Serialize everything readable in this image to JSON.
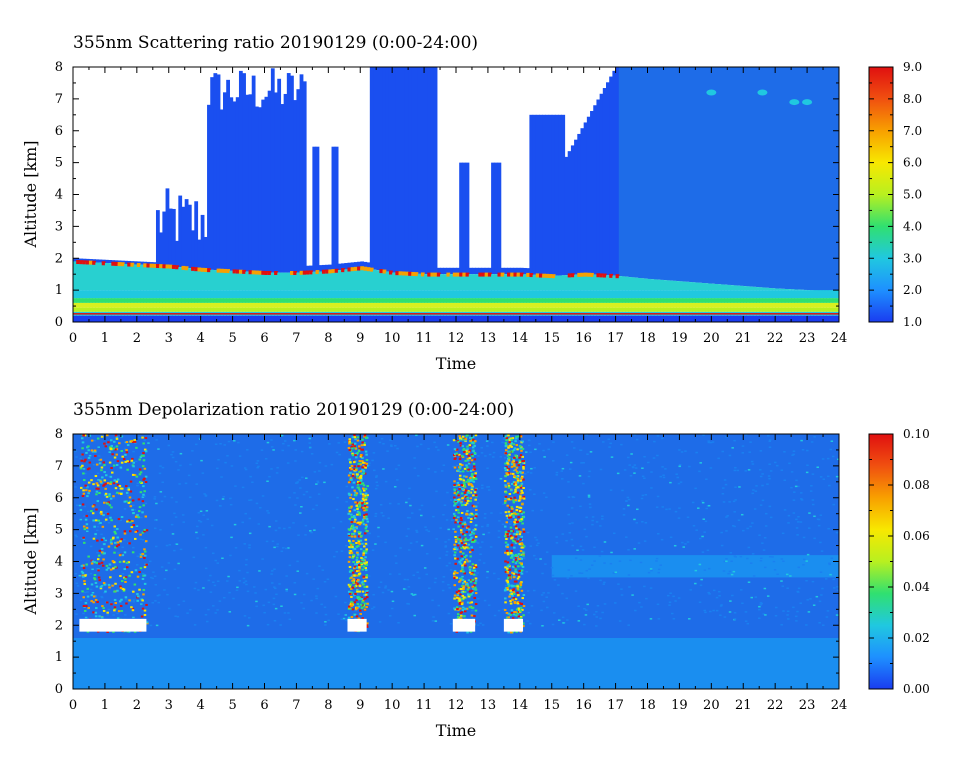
{
  "chart_data": [
    {
      "type": "heatmap",
      "title": "355nm Scattering ratio  20190129 (0:00-24:00)",
      "xlabel": "Time",
      "ylabel": "Altitude [km]",
      "xlim": [
        0,
        24
      ],
      "ylim": [
        0,
        8
      ],
      "x_ticks": [
        "0",
        "1",
        "2",
        "3",
        "4",
        "5",
        "6",
        "7",
        "8",
        "9",
        "10",
        "11",
        "12",
        "13",
        "14",
        "15",
        "16",
        "17",
        "18",
        "19",
        "20",
        "21",
        "22",
        "23",
        "24"
      ],
      "y_ticks": [
        "0",
        "1",
        "2",
        "3",
        "4",
        "5",
        "6",
        "7",
        "8"
      ],
      "colorbar": {
        "min": 1.0,
        "max": 9.0,
        "ticks": [
          "1.0",
          "2.0",
          "3.0",
          "4.0",
          "5.0",
          "6.0",
          "7.0",
          "8.0",
          "9.0"
        ],
        "colors": [
          "#1a3cf0",
          "#1e90ff",
          "#20c8e0",
          "#30e070",
          "#b8f020",
          "#f8e800",
          "#f8a000",
          "#f05010",
          "#e01010"
        ]
      },
      "features": {
        "no_data_color": "#ffffff",
        "description_cloud_top_km": [
          [
            0,
            1.9
          ],
          [
            2,
            1.8
          ],
          [
            3,
            1.75
          ],
          [
            4,
            1.65
          ],
          [
            5,
            1.6
          ],
          [
            6,
            1.55
          ],
          [
            7,
            1.55
          ],
          [
            8,
            1.6
          ],
          [
            9,
            1.7
          ],
          [
            10,
            1.55
          ],
          [
            11,
            1.5
          ],
          [
            12,
            1.5
          ],
          [
            13,
            1.5
          ],
          [
            14,
            1.5
          ],
          [
            15,
            1.45
          ],
          [
            16,
            1.5
          ],
          [
            17,
            1.45
          ],
          [
            18,
            1.35
          ],
          [
            20,
            1.2
          ],
          [
            22,
            1.05
          ],
          [
            24,
            0.95
          ]
        ],
        "surface_layer_km": [
          0.3,
          0.7
        ]
      }
    },
    {
      "type": "heatmap",
      "title": "355nm Depolarization ratio  20190129 (0:00-24:00)",
      "xlabel": "Time",
      "ylabel": "Altitude [km]",
      "xlim": [
        0,
        24
      ],
      "ylim": [
        0,
        8
      ],
      "x_ticks": [
        "0",
        "1",
        "2",
        "3",
        "4",
        "5",
        "6",
        "7",
        "8",
        "9",
        "10",
        "11",
        "12",
        "13",
        "14",
        "15",
        "16",
        "17",
        "18",
        "19",
        "20",
        "21",
        "22",
        "23",
        "24"
      ],
      "y_ticks": [
        "0",
        "1",
        "2",
        "3",
        "4",
        "5",
        "6",
        "7",
        "8"
      ],
      "colorbar": {
        "min": 0.0,
        "max": 0.1,
        "ticks": [
          "0.00",
          "0.02",
          "0.04",
          "0.06",
          "0.08",
          "0.10"
        ],
        "colors": [
          "#1a3cf0",
          "#1e90ff",
          "#20c8e0",
          "#30e070",
          "#b8f020",
          "#f8e800",
          "#f8a000",
          "#f05010",
          "#e01010"
        ]
      },
      "features": {
        "high_depol_time_bands_h": [
          [
            0.2,
            2.3
          ],
          [
            8.6,
            9.2
          ],
          [
            11.9,
            12.6
          ],
          [
            13.5,
            14.1
          ]
        ],
        "high_depol_base_km": 1.8
      }
    }
  ]
}
